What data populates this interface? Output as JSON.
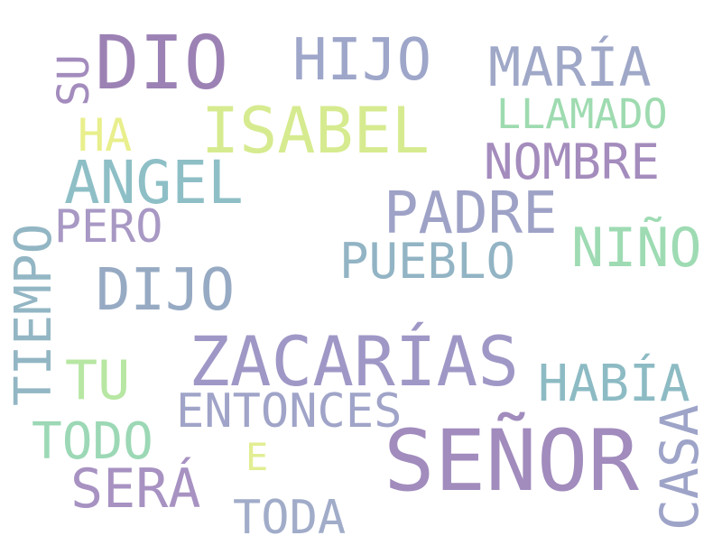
{
  "words": [
    {
      "text": "DIO",
      "color": "#9c82b4"
    },
    {
      "text": "SU",
      "color": "#a38cbd"
    },
    {
      "text": "HIJO",
      "color": "#9ea6c9"
    },
    {
      "text": "MARÍA",
      "color": "#a0a8c8"
    },
    {
      "text": "LLAMADO",
      "color": "#9edbb0"
    },
    {
      "text": "ISABEL",
      "color": "#d6eb8f"
    },
    {
      "text": "HA",
      "color": "#e8ef8c"
    },
    {
      "text": "NOMBRE",
      "color": "#a48cbd"
    },
    {
      "text": "ANGEL",
      "color": "#8ebfc6"
    },
    {
      "text": "PADRE",
      "color": "#9ea2c6"
    },
    {
      "text": "PERO",
      "color": "#a898c4"
    },
    {
      "text": "NIÑO",
      "color": "#9edbb3"
    },
    {
      "text": "TIEMPO",
      "color": "#93b6c4"
    },
    {
      "text": "PUEBLO",
      "color": "#92b4c4"
    },
    {
      "text": "DIJO",
      "color": "#97aac3"
    },
    {
      "text": "ZACARÍAS",
      "color": "#9f98c6"
    },
    {
      "text": "HABÍA",
      "color": "#8dbbc4"
    },
    {
      "text": "TU",
      "color": "#b7e7a3"
    },
    {
      "text": "ENTONCES",
      "color": "#a0a4c8"
    },
    {
      "text": "TODO",
      "color": "#9cd8b5"
    },
    {
      "text": "SEÑOR",
      "color": "#a18cbd"
    },
    {
      "text": "E",
      "color": "#e2ee92"
    },
    {
      "text": "CASA",
      "color": "#9ea4c8"
    },
    {
      "text": "SERÁ",
      "color": "#a792c2"
    },
    {
      "text": "TODA",
      "color": "#a1acc9"
    }
  ]
}
